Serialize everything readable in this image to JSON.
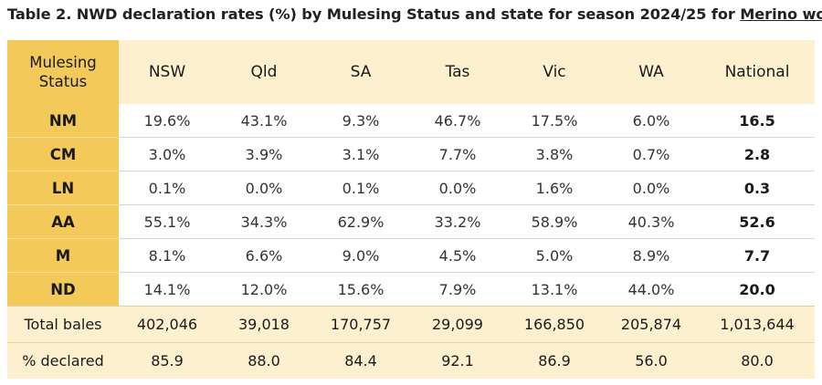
{
  "title": {
    "prefix": "Table 2. NWD declaration rates (%) by Mulesing Status and state for season 2024/25 for ",
    "link": "Merino wool"
  },
  "columns": [
    "NSW",
    "Qld",
    "SA",
    "Tas",
    "Vic",
    "WA",
    "National"
  ],
  "corner_label": "Mulesing Status",
  "rows": [
    {
      "label": "NM",
      "values": [
        "19.6%",
        "43.1%",
        "9.3%",
        "46.7%",
        "17.5%",
        "6.0%",
        "16.5"
      ]
    },
    {
      "label": "CM",
      "values": [
        "3.0%",
        "3.9%",
        "3.1%",
        "7.7%",
        "3.8%",
        "0.7%",
        "2.8"
      ]
    },
    {
      "label": "LN",
      "values": [
        "0.1%",
        "0.0%",
        "0.1%",
        "0.0%",
        "1.6%",
        "0.0%",
        "0.3"
      ]
    },
    {
      "label": "AA",
      "values": [
        "55.1%",
        "34.3%",
        "62.9%",
        "33.2%",
        "58.9%",
        "40.3%",
        "52.6"
      ]
    },
    {
      "label": "M",
      "values": [
        "8.1%",
        "6.6%",
        "9.0%",
        "4.5%",
        "5.0%",
        "8.9%",
        "7.7"
      ]
    },
    {
      "label": "ND",
      "values": [
        "14.1%",
        "12.0%",
        "15.6%",
        "7.9%",
        "13.1%",
        "44.0%",
        "20.0"
      ]
    }
  ],
  "totals": {
    "label": "Total bales",
    "values": [
      "402,046",
      "39,018",
      "170,757",
      "29,099",
      "166,850",
      "205,874",
      "1,013,644"
    ]
  },
  "declared": {
    "label": "% declared",
    "values": [
      "85.9",
      "88.0",
      "84.4",
      "92.1",
      "86.9",
      "56.0",
      "80.0"
    ]
  }
}
